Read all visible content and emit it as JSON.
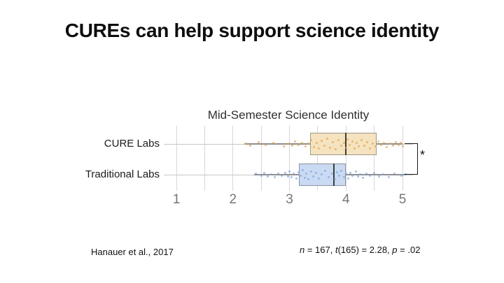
{
  "slide": {
    "title": "CUREs can help support science identity",
    "background": "#ffffff"
  },
  "chart_data": {
    "type": "boxplot",
    "orientation": "horizontal",
    "title": "Mid-Semester Science Identity",
    "xlabel": "",
    "ylabel": "",
    "xlim": [
      0.777,
      5.185
    ],
    "x_ticks": [
      1,
      2,
      3,
      4,
      5
    ],
    "x_minor_step": 0.5,
    "grid": true,
    "grid_color": "#d6d6d6",
    "tick_label_color": "#767676",
    "categories": [
      "CURE Labs",
      "Traditional Labs"
    ],
    "series": [
      {
        "name": "CURE Labs",
        "box_fill": "#f5e3c0",
        "box_border": "#9e988a",
        "point_color": "#e2a645",
        "median_color": "#3c3c3c",
        "whisker_low": 2.2,
        "q1": 3.37,
        "median": 4.0,
        "q3": 4.54,
        "whisker_high": 5.0,
        "points": [
          [
            2.22,
            -1
          ],
          [
            2.3,
            2
          ],
          [
            2.45,
            -3
          ],
          [
            2.58,
            1
          ],
          [
            2.72,
            -2
          ],
          [
            2.9,
            3
          ],
          [
            2.98,
            -1
          ],
          [
            3.05,
            2
          ],
          [
            3.1,
            -4
          ],
          [
            3.16,
            1
          ],
          [
            3.22,
            -2
          ],
          [
            3.28,
            3
          ],
          [
            3.33,
            -1
          ],
          [
            3.38,
            -6
          ],
          [
            3.43,
            4
          ],
          [
            3.48,
            -2
          ],
          [
            3.52,
            6
          ],
          [
            3.57,
            -5
          ],
          [
            3.62,
            2
          ],
          [
            3.67,
            -8
          ],
          [
            3.72,
            5
          ],
          [
            3.77,
            -3
          ],
          [
            3.82,
            7
          ],
          [
            3.87,
            -6
          ],
          [
            3.92,
            2
          ],
          [
            3.96,
            -2
          ],
          [
            4.0,
            5
          ],
          [
            4.03,
            -7
          ],
          [
            4.07,
            1
          ],
          [
            4.11,
            -4
          ],
          [
            4.15,
            6
          ],
          [
            4.19,
            -2
          ],
          [
            4.23,
            3
          ],
          [
            4.28,
            -6
          ],
          [
            4.33,
            2
          ],
          [
            4.38,
            -3
          ],
          [
            4.42,
            6
          ],
          [
            4.47,
            -1
          ],
          [
            4.52,
            3
          ],
          [
            4.57,
            -4
          ],
          [
            4.62,
            1
          ],
          [
            4.67,
            -2
          ],
          [
            4.72,
            4
          ],
          [
            4.78,
            -1
          ],
          [
            4.83,
            2
          ],
          [
            4.88,
            -3
          ],
          [
            4.93,
            1
          ],
          [
            4.97,
            -2
          ],
          [
            5.0,
            3
          ]
        ]
      },
      {
        "name": "Traditional Labs",
        "box_fill": "#cadaf2",
        "box_border": "#8a94a4",
        "point_color": "#7fa6de",
        "median_color": "#3c3c3c",
        "whisker_low": 2.38,
        "q1": 3.17,
        "median": 3.79,
        "q3": 4.0,
        "whisker_high": 5.05,
        "points": [
          [
            2.4,
            -2
          ],
          [
            2.5,
            1
          ],
          [
            2.56,
            -3
          ],
          [
            2.62,
            2
          ],
          [
            2.68,
            -1
          ],
          [
            2.74,
            3
          ],
          [
            2.8,
            -2
          ],
          [
            2.86,
            1
          ],
          [
            2.92,
            -3
          ],
          [
            2.97,
            2
          ],
          [
            3.0,
            -5
          ],
          [
            3.04,
            3
          ],
          [
            3.08,
            -2
          ],
          [
            3.12,
            5
          ],
          [
            3.16,
            -4
          ],
          [
            3.2,
            1
          ],
          [
            3.23,
            -7
          ],
          [
            3.27,
            4
          ],
          [
            3.3,
            -2
          ],
          [
            3.34,
            6
          ],
          [
            3.38,
            -5
          ],
          [
            3.42,
            2
          ],
          [
            3.47,
            -3
          ],
          [
            3.52,
            5
          ],
          [
            3.57,
            -1
          ],
          [
            3.63,
            -6
          ],
          [
            3.69,
            3
          ],
          [
            3.75,
            -2
          ],
          [
            3.8,
            6
          ],
          [
            3.84,
            -4
          ],
          [
            3.88,
            1
          ],
          [
            3.92,
            -6
          ],
          [
            3.96,
            3
          ],
          [
            4.0,
            -2
          ],
          [
            4.04,
            5
          ],
          [
            4.08,
            -3
          ],
          [
            4.12,
            1
          ],
          [
            4.17,
            -5
          ],
          [
            4.21,
            2
          ],
          [
            4.25,
            -1
          ],
          [
            4.3,
            4
          ],
          [
            4.36,
            -2
          ],
          [
            4.42,
            1
          ],
          [
            4.5,
            -3
          ],
          [
            4.58,
            2
          ],
          [
            4.66,
            -1
          ],
          [
            4.76,
            3
          ],
          [
            4.86,
            -2
          ],
          [
            4.98,
            1
          ],
          [
            5.05,
            -1
          ]
        ]
      }
    ],
    "significance_label": "*",
    "legend": "none"
  },
  "footer": {
    "citation": "Hanauer et al., 2017",
    "stats_segments": [
      {
        "text": "n",
        "italic": true
      },
      {
        "text": " = 167, ",
        "italic": false
      },
      {
        "text": "t",
        "italic": true
      },
      {
        "text": "(165) = 2.28, ",
        "italic": false
      },
      {
        "text": "p",
        "italic": true
      },
      {
        "text": " = .02",
        "italic": false
      }
    ]
  }
}
